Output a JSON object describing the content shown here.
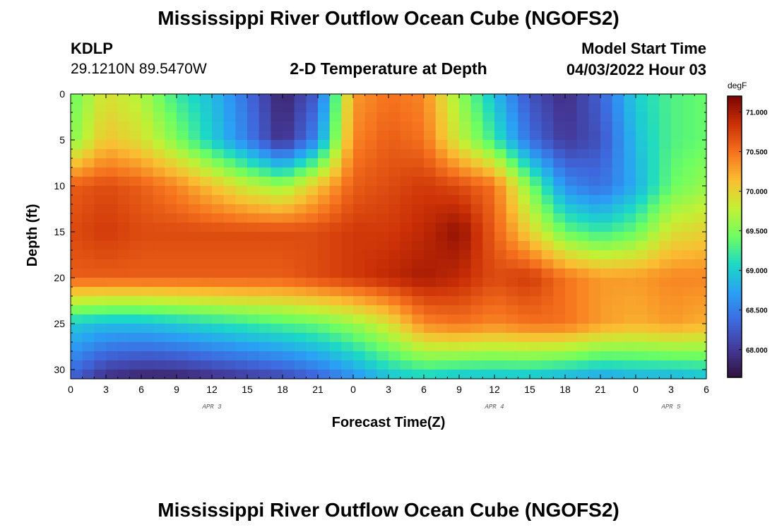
{
  "header": {
    "title": "Mississippi River Outflow Ocean Cube (NGOFS2)",
    "station": "KDLP",
    "coordinates": "29.1210N  89.5470W",
    "subtitle": "2-D Temperature at Depth",
    "start_label": "Model Start Time",
    "start_value": "04/03/2022 Hour 03"
  },
  "footer": {
    "title": "Mississippi River Outflow Ocean Cube (NGOFS2)"
  },
  "chart_data": {
    "type": "heatmap",
    "title": "2-D Temperature at Depth",
    "xlabel": "Forecast Time(Z)",
    "ylabel": "Depth (ft)",
    "x_unit": "hours since APR 3 00Z",
    "xlim": [
      0,
      54
    ],
    "ylim": [
      0,
      31
    ],
    "y_inverted": true,
    "x_tick_values": [
      0,
      3,
      6,
      9,
      12,
      15,
      18,
      21,
      24,
      27,
      30,
      33,
      36,
      39,
      42,
      45,
      48,
      51,
      54
    ],
    "x_tick_labels": [
      "0",
      "3",
      "6",
      "9",
      "12",
      "15",
      "18",
      "21",
      "0",
      "3",
      "6",
      "9",
      "12",
      "15",
      "18",
      "21",
      "0",
      "3",
      "6"
    ],
    "y_ticks": [
      0,
      5,
      10,
      15,
      20,
      25,
      30
    ],
    "date_labels": [
      {
        "label": "APR 3",
        "hour": 12
      },
      {
        "label": "APR 4",
        "hour": 36
      },
      {
        "label": "APR 5",
        "hour": 51
      }
    ],
    "colorbar": {
      "unit": "degF",
      "min": 67.65,
      "max": 71.2,
      "ticks": [
        "68.000",
        "68.500",
        "69.000",
        "69.500",
        "70.000",
        "70.500",
        "71.000"
      ],
      "tick_values": [
        68.0,
        68.5,
        69.0,
        69.5,
        70.0,
        70.5,
        71.0
      ]
    },
    "grid_hours": [
      0,
      3,
      6,
      9,
      12,
      15,
      18,
      21,
      24,
      27,
      30,
      33,
      36,
      39,
      42,
      45,
      48,
      51,
      54
    ],
    "grid_depths": [
      0,
      5,
      10,
      15,
      20,
      25,
      31
    ],
    "values": [
      [
        69.4,
        69.9,
        69.7,
        69.2,
        68.9,
        68.4,
        67.8,
        68.3,
        70.3,
        70.5,
        70.4,
        69.6,
        68.9,
        68.2,
        67.9,
        68.3,
        69.0,
        69.3,
        69.4
      ],
      [
        69.5,
        70.1,
        69.9,
        69.5,
        69.0,
        68.5,
        67.9,
        68.6,
        70.4,
        70.6,
        70.5,
        69.8,
        69.2,
        68.4,
        68.0,
        68.2,
        68.9,
        69.3,
        69.4
      ],
      [
        70.6,
        70.7,
        70.6,
        70.4,
        70.1,
        69.8,
        69.6,
        70.1,
        70.6,
        70.7,
        70.8,
        70.7,
        70.5,
        69.5,
        68.6,
        68.4,
        68.8,
        69.4,
        69.6
      ],
      [
        70.7,
        70.8,
        70.7,
        70.7,
        70.7,
        70.7,
        70.7,
        70.7,
        70.8,
        70.8,
        70.9,
        71.1,
        70.6,
        70.0,
        69.4,
        69.2,
        69.4,
        69.9,
        70.0
      ],
      [
        70.6,
        70.6,
        70.6,
        70.6,
        70.6,
        70.6,
        70.6,
        70.7,
        70.8,
        70.9,
        71.0,
        70.9,
        70.7,
        70.8,
        70.5,
        70.3,
        70.3,
        70.4,
        70.4
      ],
      [
        69.0,
        68.9,
        68.9,
        69.0,
        69.1,
        69.2,
        69.3,
        69.4,
        69.6,
        69.9,
        70.4,
        70.5,
        70.4,
        70.5,
        70.5,
        70.3,
        70.2,
        70.3,
        70.2
      ],
      [
        68.3,
        67.9,
        67.8,
        67.8,
        67.9,
        68.0,
        68.1,
        68.3,
        68.6,
        68.9,
        69.0,
        68.9,
        68.9,
        68.9,
        68.8,
        68.7,
        68.8,
        68.8,
        68.9
      ]
    ]
  }
}
